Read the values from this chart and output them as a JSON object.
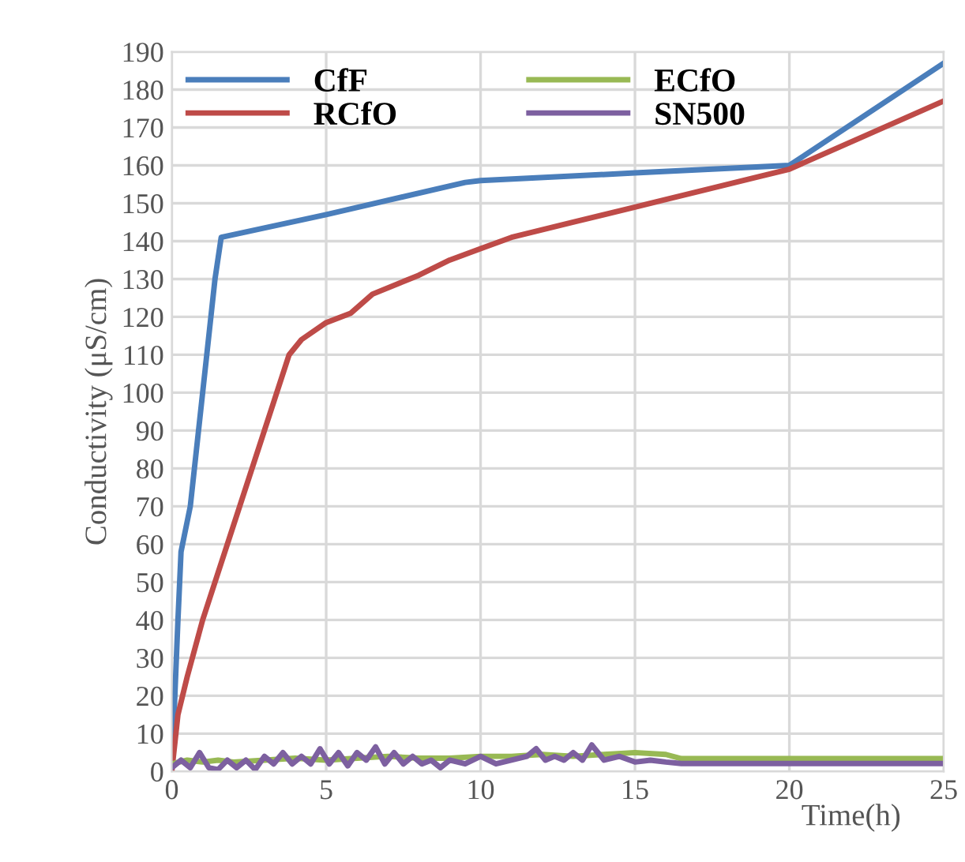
{
  "chart_data": {
    "type": "line",
    "xlabel": "Time(h)",
    "ylabel": "Conductivity (μS/cm)",
    "xlim": [
      0,
      25
    ],
    "xticks": [
      0,
      5,
      10,
      15,
      20,
      25
    ],
    "ylim": [
      0,
      190
    ],
    "yticks": [
      0,
      10,
      20,
      30,
      40,
      50,
      60,
      70,
      80,
      90,
      100,
      110,
      120,
      130,
      140,
      150,
      160,
      170,
      180,
      190
    ],
    "grid": true,
    "legend": "top left",
    "line_style": "solid",
    "marker": "none",
    "series": [
      {
        "name": "CfF",
        "color": "#4a7ebb",
        "x": [
          0,
          0.1,
          0.2,
          0.3,
          0.6,
          1,
          1.4,
          1.6,
          5,
          9.5,
          10,
          15,
          20,
          25
        ],
        "values": [
          0,
          20,
          40,
          58,
          70,
          100,
          130,
          141,
          147,
          155.5,
          156,
          158,
          160,
          187
        ]
      },
      {
        "name": "RCfO",
        "color": "#be4b48",
        "x": [
          0,
          0.2,
          0.5,
          1,
          2,
          3,
          3.8,
          4.2,
          5,
          5.8,
          6.5,
          8,
          9,
          10,
          11,
          13,
          15,
          17,
          19,
          20,
          22.5,
          25
        ],
        "values": [
          0,
          15,
          25,
          40,
          65,
          90,
          110,
          114,
          118.5,
          121,
          126,
          131,
          135,
          138,
          141,
          145,
          149,
          153,
          157,
          159,
          168,
          177
        ]
      },
      {
        "name": "ECfO",
        "color": "#98b954",
        "x": [
          0,
          0.5,
          1,
          1.5,
          2,
          3,
          4,
          5,
          6,
          7,
          8,
          9,
          10,
          11,
          12,
          13,
          14,
          15,
          16,
          16.5,
          20,
          25
        ],
        "values": [
          2,
          3,
          2.5,
          3,
          2.5,
          3,
          3.5,
          3,
          3.5,
          4,
          3.5,
          3.5,
          4,
          4,
          4.5,
          4,
          4.5,
          5,
          4.5,
          3.4,
          3.4,
          3.4
        ]
      },
      {
        "name": "SN500",
        "color": "#7d60a0",
        "x": [
          0,
          0.3,
          0.6,
          0.9,
          1.2,
          1.5,
          1.8,
          2.1,
          2.4,
          2.7,
          3,
          3.3,
          3.6,
          3.9,
          4.2,
          4.5,
          4.8,
          5.1,
          5.4,
          5.7,
          6,
          6.3,
          6.6,
          6.9,
          7.2,
          7.5,
          7.8,
          8.1,
          8.4,
          8.7,
          9,
          9.5,
          10,
          10.5,
          11,
          11.5,
          11.8,
          12.1,
          12.4,
          12.7,
          13,
          13.3,
          13.6,
          14,
          14.5,
          15,
          15.5,
          16,
          16.5,
          20,
          25
        ],
        "values": [
          1,
          3,
          1,
          5,
          1,
          0.5,
          3,
          1,
          3,
          0.5,
          4,
          2,
          5,
          2,
          4,
          2,
          6,
          2,
          5,
          1.5,
          5,
          3,
          6.5,
          2,
          5,
          2,
          4,
          2,
          3,
          1,
          3,
          2,
          4,
          2,
          3,
          4,
          6,
          3,
          4,
          3,
          5,
          3,
          7,
          3,
          4,
          2.5,
          3,
          2.5,
          2.1,
          2.1,
          2.1
        ]
      }
    ]
  }
}
